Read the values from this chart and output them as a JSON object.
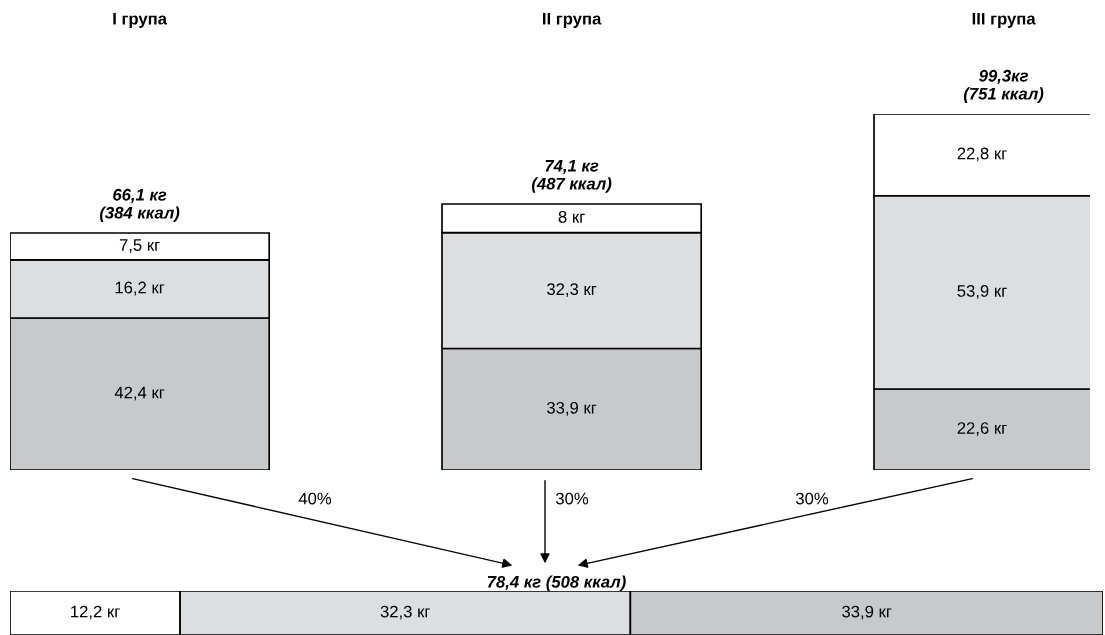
{
  "chart_data": [
    {
      "type": "bar",
      "stacked": true,
      "categories": [
        "I група",
        "II група",
        "III група"
      ],
      "tick_labels": "x",
      "series": [
        {
          "color": "#c8c9cb",
          "values": [
            42.4,
            33.9,
            22.6
          ],
          "value_labels": [
            "42,4 кг",
            "33,9 кг",
            "22,6 кг"
          ]
        },
        {
          "color": "#dddee0",
          "values": [
            16.2,
            32.3,
            53.9
          ],
          "value_labels": [
            "16,2 кг",
            "32,3 кг",
            "53,9 кг"
          ]
        },
        {
          "color": "#ffffff",
          "values": [
            7.5,
            8,
            22.8
          ],
          "value_labels": [
            "7,5 кг",
            "8 кг",
            "22,8 кг"
          ]
        }
      ],
      "totals": [
        "66,1 кг\n(384 ккал)",
        "74,1 кг\n(487 ккал)",
        "99,3кг\n(751 ккал)"
      ],
      "annotations": [
        "40%",
        "30%",
        "30%"
      ]
    },
    {
      "type": "bar",
      "stacked": true,
      "orientation": "horizontal",
      "categories": [
        null
      ],
      "tick_labels": false,
      "series": [
        {
          "color": "#ffffff",
          "values": [
            12.2
          ],
          "value_labels": [
            "12,2 кг"
          ]
        },
        {
          "color": "#dddee0",
          "values": [
            32.3
          ],
          "value_labels": [
            "32,3 кг"
          ]
        },
        {
          "color": "#c8c9cb",
          "values": [
            33.9
          ],
          "value_labels": [
            "33,9 кг"
          ]
        }
      ],
      "totals": [
        "78,4 кг (508 ккал)"
      ]
    }
  ]
}
